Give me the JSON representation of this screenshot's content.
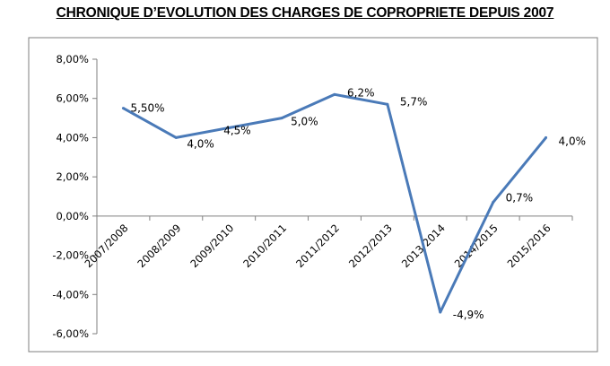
{
  "chart_data": {
    "type": "line",
    "title": "CHRONIQUE D’EVOLUTION DES CHARGES DE COPROPRIETE DEPUIS 2007",
    "xlabel": "",
    "ylabel": "",
    "categories": [
      "2007/2008",
      "2008/2009",
      "2009/2010",
      "2010/2011",
      "2011/2012",
      "2012/2013",
      "2013/2014",
      "2014/2015",
      "2015/2016"
    ],
    "series": [
      {
        "values": [
          5.5,
          4.0,
          4.5,
          5.0,
          6.2,
          5.7,
          -4.9,
          0.7,
          4.0
        ]
      }
    ],
    "data_labels": [
      "5,50%",
      "4,0%",
      "4,5%",
      "5,0%",
      "6,2%",
      "5,7%",
      "-4,9%",
      "0,7%",
      "4,0%"
    ],
    "ylim": [
      -6,
      8
    ],
    "y_ticks": [
      8,
      6,
      4,
      2,
      0,
      -2,
      -4,
      -6
    ],
    "y_tick_labels": [
      "8,00%",
      "6,00%",
      "4,00%",
      "2,00%",
      "0,00%",
      "-2,00%",
      "-4,00%",
      "-6,00%"
    ],
    "grid": false,
    "legend": "none",
    "line_color": "#4a7ab8",
    "frame_color": "#7f7f7f"
  }
}
